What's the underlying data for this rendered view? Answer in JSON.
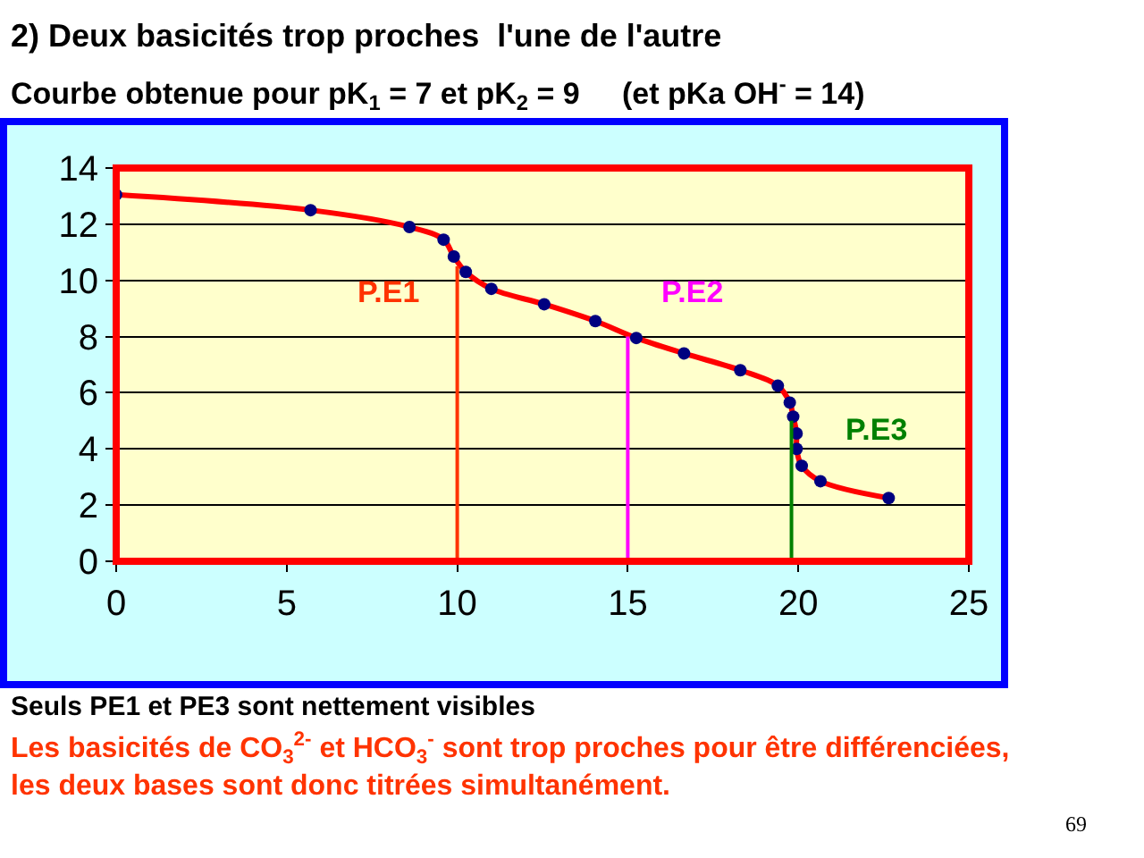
{
  "chart_data": {
    "type": "line",
    "title": "2) Deux basicités trop proches  l'une de l'autre",
    "subtitle": "Courbe obtenue pour pK$_{1}$ = 7 et pK$_{2}$ = 9     (et pKa OH$^{-}$ = 14)",
    "xlim": [
      0,
      25
    ],
    "xticks": [
      0,
      5,
      10,
      15,
      20,
      25
    ],
    "ylim": [
      0,
      14
    ],
    "yticks": [
      0,
      2,
      4,
      6,
      8,
      10,
      12,
      14
    ],
    "grid": "y",
    "series": [
      {
        "color": "#ff0000",
        "marker": "none",
        "x": [
          0,
          5.7,
          8.6,
          9.6,
          9.9,
          10.25,
          11.0,
          12.55,
          14.05,
          15.25,
          16.65,
          18.3,
          19.4,
          19.75,
          19.85,
          19.95,
          19.95,
          20.1,
          20.65,
          22.65
        ],
        "values": [
          13.05,
          12.5,
          11.9,
          11.45,
          10.85,
          10.3,
          9.7,
          9.15,
          8.55,
          7.95,
          7.4,
          6.8,
          6.25,
          5.65,
          5.15,
          4.55,
          4.0,
          3.4,
          2.85,
          2.25
        ]
      },
      {
        "type": "scatter",
        "color": "#000080",
        "marker": "circle",
        "x": [
          0,
          5.7,
          8.6,
          9.6,
          9.9,
          10.25,
          11.0,
          12.55,
          14.05,
          15.25,
          16.65,
          18.3,
          19.4,
          19.75,
          19.85,
          19.95,
          19.95,
          20.1,
          20.65,
          22.65
        ],
        "values": [
          13.05,
          12.5,
          11.9,
          11.45,
          10.85,
          10.3,
          9.7,
          9.15,
          8.55,
          7.95,
          7.4,
          6.8,
          6.25,
          5.65,
          5.15,
          4.55,
          4.0,
          3.4,
          2.85,
          2.25
        ]
      },
      {
        "type": "line",
        "name": "P.E1",
        "color": "#ff3300",
        "marker": "none",
        "x": [
          10,
          10
        ],
        "values": [
          0,
          10.5
        ]
      },
      {
        "type": "line",
        "name": "P.E2",
        "color": "#ff00ff",
        "marker": "none",
        "x": [
          15,
          15
        ],
        "values": [
          0,
          8
        ]
      },
      {
        "type": "line",
        "name": "P.E3",
        "color": "#008000",
        "marker": "none",
        "x": [
          19.8,
          19.8
        ],
        "values": [
          0,
          5
        ]
      }
    ],
    "annotations": [
      "Seuls PE1 et PE3 sont nettement visibles",
      "Les basicités de CO$_{3}$$^{2-}$ et HCO$_{3}$$^{-}$ sont trop proches pour être différenciées,\nles deux bases sont donc titrées simultanément.",
      "69"
    ]
  }
}
